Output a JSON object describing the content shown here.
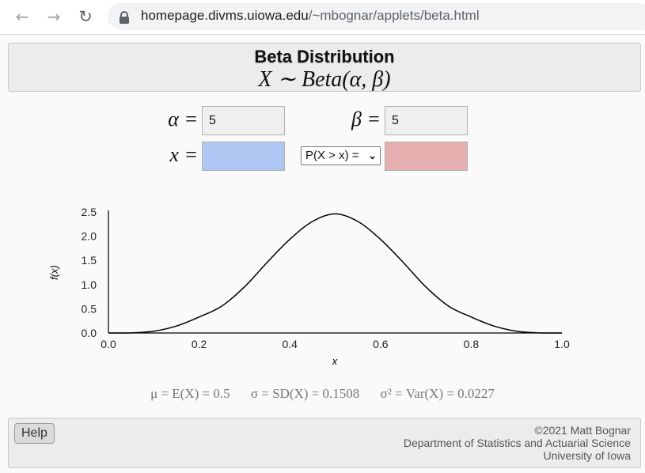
{
  "browser": {
    "url_host": "homepage.divms.uiowa.edu",
    "url_path": "/~mbognar/applets/beta.html"
  },
  "header": {
    "title": "Beta Distribution",
    "subtitle": "X ∼ Beta(α, β)"
  },
  "inputs": {
    "alpha_label": "α =",
    "alpha_value": "5",
    "beta_label": "β =",
    "beta_value": "5",
    "x_label": "x =",
    "x_value": "",
    "prob_select": "P(X > x) =",
    "prob_value": ""
  },
  "chart_data": {
    "type": "line",
    "title": "",
    "xlabel": "x",
    "ylabel": "f(x)",
    "xlim": [
      0,
      1
    ],
    "ylim": [
      0,
      2.5
    ],
    "x_ticks": [
      "0.0",
      "0.2",
      "0.4",
      "0.6",
      "0.8",
      "1.0"
    ],
    "y_ticks": [
      "0.0",
      "0.5",
      "1.0",
      "1.5",
      "2.0",
      "2.5"
    ],
    "x": [
      0.0,
      0.05,
      0.1,
      0.15,
      0.2,
      0.25,
      0.3,
      0.35,
      0.4,
      0.45,
      0.5,
      0.55,
      0.6,
      0.65,
      0.7,
      0.75,
      0.8,
      0.85,
      0.9,
      0.95,
      1.0
    ],
    "y": [
      0.0,
      0.003,
      0.037,
      0.144,
      0.33,
      0.556,
      0.953,
      1.459,
      1.935,
      2.304,
      2.461,
      2.304,
      1.935,
      1.459,
      0.953,
      0.556,
      0.33,
      0.144,
      0.037,
      0.003,
      0.0
    ],
    "grid": false,
    "color": "#000000"
  },
  "stats": {
    "mean": "μ = E(X) = 0.5",
    "sd": "σ = SD(X) = 0.1508",
    "var": "σ² = Var(X) = 0.0227"
  },
  "footer": {
    "help_label": "Help",
    "copyright": "©2021 Matt Bognar",
    "department": "Department of Statistics and Actuarial Science",
    "university": "University of Iowa"
  }
}
